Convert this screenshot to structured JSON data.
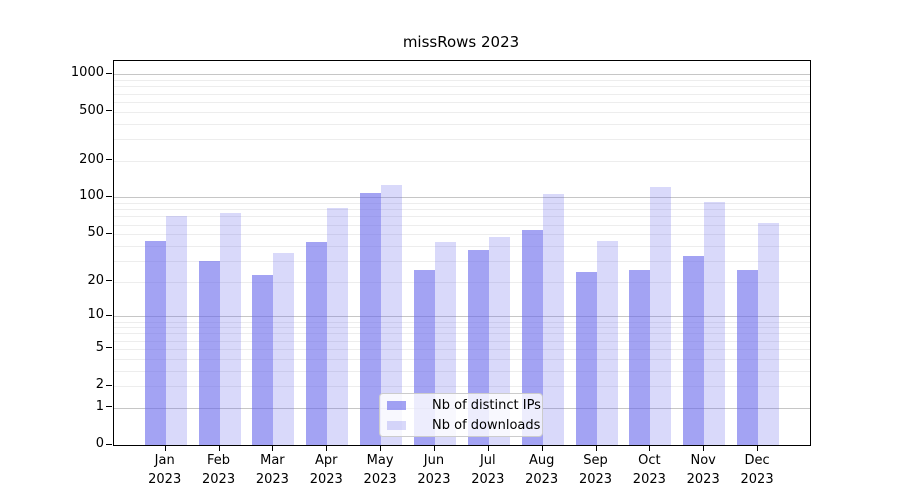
{
  "title": "missRows 2023",
  "chart_data": {
    "type": "bar",
    "title": "missRows 2023",
    "categories": [
      "Jan",
      "Feb",
      "Mar",
      "Apr",
      "May",
      "Jun",
      "Jul",
      "Aug",
      "Sep",
      "Oct",
      "Nov",
      "Dec"
    ],
    "year_label": "2023",
    "y_ticks": [
      0,
      1,
      2,
      5,
      10,
      20,
      50,
      100,
      200,
      500,
      1000
    ],
    "y_scale": "symlog (pixel position proportional to log10(1+value))",
    "ylim": [
      0,
      1285
    ],
    "grid": true,
    "legend": {
      "position": "lower center",
      "entries": [
        "Nb of distinct IPs",
        "Nb of downloads"
      ]
    },
    "series": [
      {
        "name": "Nb of distinct IPs",
        "color": "#6666eb",
        "fill": "rgba(102,102,235,0.6)",
        "values": [
          44,
          30,
          23,
          43,
          109,
          25,
          37,
          54,
          24,
          25,
          33,
          25
        ]
      },
      {
        "name": "Nb of downloads",
        "color": "#6666eb",
        "fill": "rgba(102,102,235,0.25)",
        "values": [
          71,
          74,
          35,
          82,
          127,
          43,
          47,
          106,
          44,
          121,
          92,
          62
        ]
      }
    ]
  }
}
